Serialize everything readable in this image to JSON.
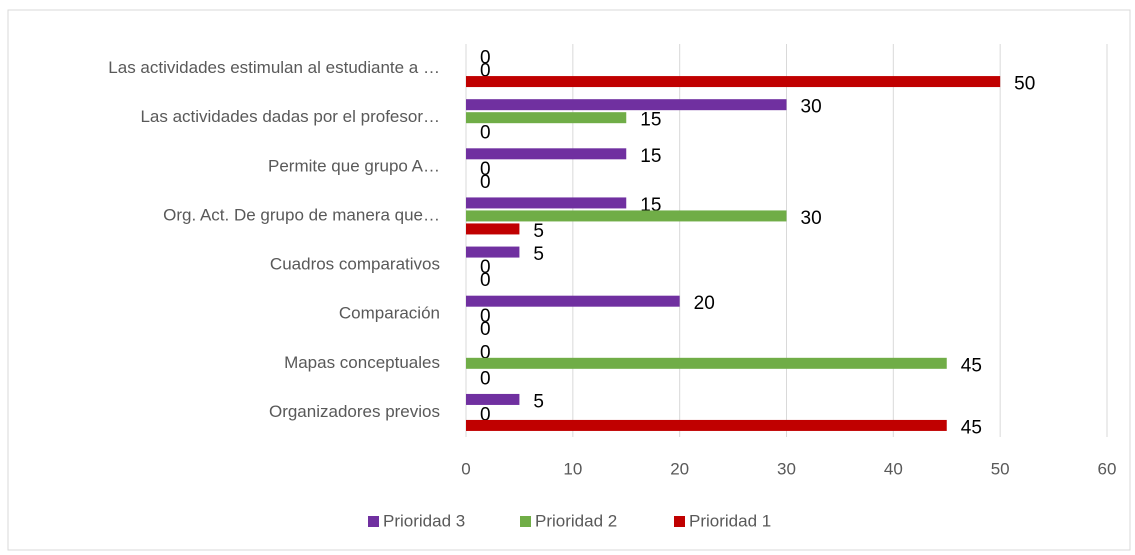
{
  "chart_data": {
    "type": "hbar",
    "categories": [
      "Organizadores previos",
      "Mapas conceptuales",
      "Comparación",
      "Cuadros comparativos",
      "Org. Act. De grupo de manera que…",
      "Permite que grupo A…",
      "Las actividades dadas por el profesor…",
      "Las actividades estimulan al estudiante a …"
    ],
    "series": [
      {
        "name": "Prioridad 3",
        "color": "#7030a0",
        "values": [
          5,
          0,
          20,
          5,
          15,
          15,
          30,
          0
        ]
      },
      {
        "name": "Prioridad 2",
        "color": "#70ad47",
        "values": [
          0,
          45,
          0,
          0,
          30,
          0,
          15,
          0
        ]
      },
      {
        "name": "Prioridad 1",
        "color": "#c00000",
        "values": [
          45,
          0,
          0,
          0,
          5,
          0,
          0,
          50
        ]
      }
    ],
    "xlim": [
      0,
      60
    ],
    "xticks": [
      0,
      10,
      20,
      30,
      40,
      50,
      60
    ],
    "grid": true,
    "legend": "bottom"
  }
}
